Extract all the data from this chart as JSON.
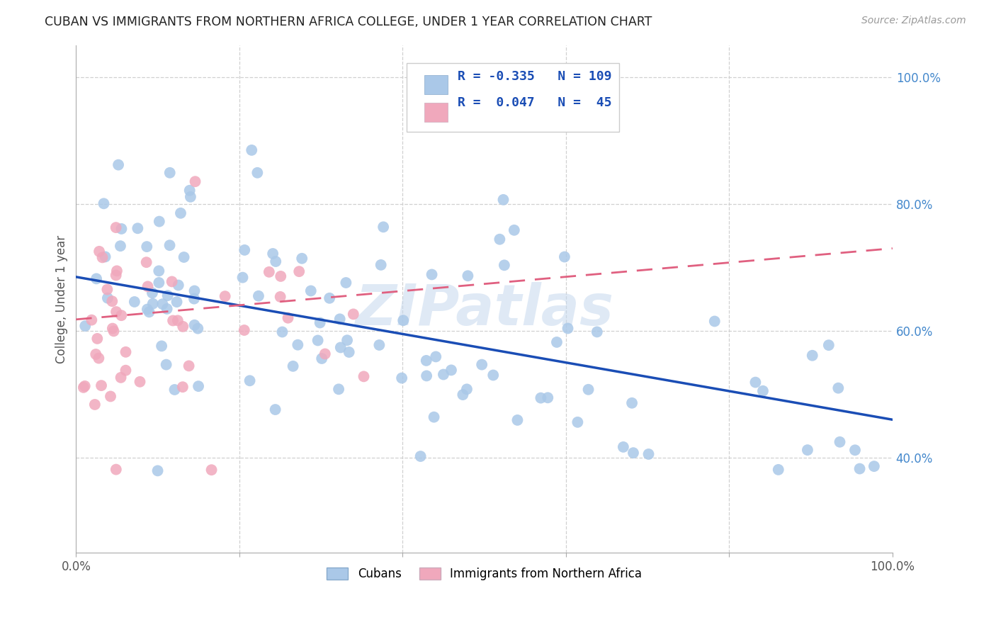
{
  "title": "CUBAN VS IMMIGRANTS FROM NORTHERN AFRICA COLLEGE, UNDER 1 YEAR CORRELATION CHART",
  "source_text": "Source: ZipAtlas.com",
  "ylabel": "College, Under 1 year",
  "right_yticklabels": [
    "40.0%",
    "60.0%",
    "80.0%",
    "100.0%"
  ],
  "right_ytick_vals": [
    0.4,
    0.6,
    0.8,
    1.0
  ],
  "xticklabels": [
    "0.0%",
    "",
    "",
    "",
    "",
    "100.0%"
  ],
  "xtick_vals": [
    0.0,
    0.2,
    0.4,
    0.6,
    0.8,
    1.0
  ],
  "xlim": [
    0.0,
    1.0
  ],
  "ylim": [
    0.25,
    1.05
  ],
  "legend_blue_R": "R = -0.335",
  "legend_blue_N": "N = 109",
  "legend_pink_R": "R =  0.047",
  "legend_pink_N": "N =  45",
  "legend_label_blue": "Cubans",
  "legend_label_pink": "Immigrants from Northern Africa",
  "blue_color": "#aac8e8",
  "blue_line_color": "#1a4db5",
  "pink_color": "#f0a8bc",
  "pink_line_color": "#e06080",
  "grid_color": "#d0d0d0",
  "background_color": "#ffffff",
  "watermark": "ZIPatlas",
  "blue_R": -0.335,
  "pink_R": 0.047,
  "blue_N": 109,
  "pink_N": 45,
  "blue_line_x0": 0.0,
  "blue_line_y0": 0.685,
  "blue_line_x1": 1.0,
  "blue_line_y1": 0.46,
  "pink_line_x0": 0.0,
  "pink_line_y0": 0.618,
  "pink_line_x1": 1.0,
  "pink_line_y1": 0.73
}
